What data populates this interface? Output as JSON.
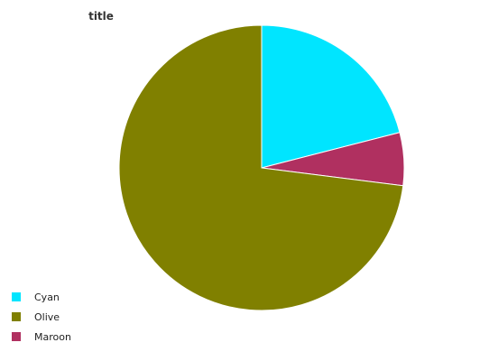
{
  "chart_data": {
    "type": "pie",
    "title": "title",
    "series": [
      {
        "name": "Cyan",
        "value": 21,
        "color": "#00e5ff"
      },
      {
        "name": "Olive",
        "value": 73,
        "color": "#808000"
      },
      {
        "name": "Maroon",
        "value": 6,
        "color": "#b03060"
      }
    ],
    "legend_position": "bottom-left"
  }
}
